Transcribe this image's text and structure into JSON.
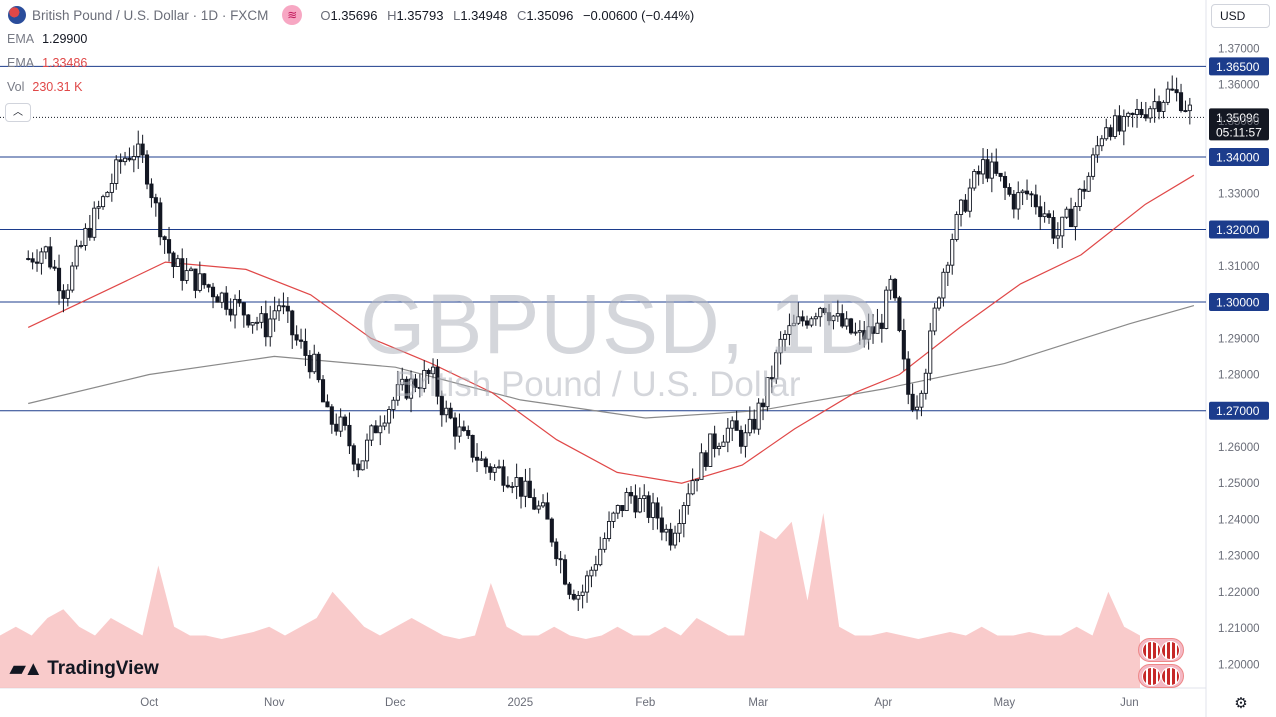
{
  "header": {
    "title": "British Pound / U.S. Dollar · 1D · FXCM",
    "open_label": "O",
    "open": "1.35696",
    "high_label": "H",
    "high": "1.35793",
    "low_label": "L",
    "low": "1.34948",
    "close_label": "C",
    "close": "1.35096",
    "change": "−0.00600 (−0.44%)"
  },
  "indicators": [
    {
      "name": "EMA",
      "value": "1.29900",
      "color": "#787b86"
    },
    {
      "name": "EMA",
      "value": "1.33486",
      "color": "#e04848"
    },
    {
      "name": "Vol",
      "value": "230.31 K",
      "color": "#e04848"
    }
  ],
  "currency_button": "USD",
  "collapse_icon": "chevron-up-icon",
  "watermark": {
    "symbol": "GBPUSD, 1D",
    "description": "British Pound / U.S. Dollar"
  },
  "brand": "TradingView",
  "colors": {
    "up": "#131722",
    "down": "#131722",
    "ema_fast": "#e04848",
    "ema_slow": "#8a8a8a",
    "hline": "#1c3c8c",
    "vol_up": "#a8d8d0",
    "vol_down": "#f7b9b9"
  },
  "chart_data": {
    "type": "candlestick",
    "title": "GBPUSD, 1D",
    "ylim": [
      1.1935,
      1.3745
    ],
    "y_ticks": [
      "1.37000",
      "1.36000",
      "1.35000",
      "1.33000",
      "1.31000",
      "1.29000",
      "1.28000",
      "1.26000",
      "1.25000",
      "1.24000",
      "1.23000",
      "1.22000",
      "1.21000",
      "1.20000"
    ],
    "x_ticks": [
      "Oct",
      "Nov",
      "Dec",
      "2025",
      "Feb",
      "Mar",
      "Apr",
      "May",
      "Jun"
    ],
    "price_lines": [
      "1.36500",
      "1.34000",
      "1.32000",
      "1.30000",
      "1.27000"
    ],
    "last_price": "1.35096",
    "countdown": "05:11:57",
    "close_path": [
      [
        "2024-09-01",
        1.312
      ],
      [
        "2024-09-05",
        1.315
      ],
      [
        "2024-09-10",
        1.303
      ],
      [
        "2024-09-15",
        1.318
      ],
      [
        "2024-09-20",
        1.329
      ],
      [
        "2024-09-24",
        1.339
      ],
      [
        "2024-09-27",
        1.342
      ],
      [
        "2024-09-30",
        1.338
      ],
      [
        "2024-10-03",
        1.324
      ],
      [
        "2024-10-07",
        1.31
      ],
      [
        "2024-10-11",
        1.307
      ],
      [
        "2024-10-16",
        1.304
      ],
      [
        "2024-10-21",
        1.3
      ],
      [
        "2024-10-25",
        1.297
      ],
      [
        "2024-10-30",
        1.293
      ],
      [
        "2024-11-02",
        1.3
      ],
      [
        "2024-11-06",
        1.29
      ],
      [
        "2024-11-11",
        1.282
      ],
      [
        "2024-11-14",
        1.268
      ],
      [
        "2024-11-18",
        1.265
      ],
      [
        "2024-11-22",
        1.255
      ],
      [
        "2024-11-27",
        1.268
      ],
      [
        "2024-12-02",
        1.275
      ],
      [
        "2024-12-06",
        1.278
      ],
      [
        "2024-12-10",
        1.28
      ],
      [
        "2024-12-13",
        1.27
      ],
      [
        "2024-12-18",
        1.262
      ],
      [
        "2024-12-23",
        1.255
      ],
      [
        "2024-12-30",
        1.252
      ],
      [
        "2025-01-03",
        1.246
      ],
      [
        "2025-01-07",
        1.241
      ],
      [
        "2025-01-10",
        1.232
      ],
      [
        "2025-01-13",
        1.222
      ],
      [
        "2025-01-16",
        1.219
      ],
      [
        "2025-01-20",
        1.23
      ],
      [
        "2025-01-24",
        1.24
      ],
      [
        "2025-01-28",
        1.247
      ],
      [
        "2025-02-01",
        1.243
      ],
      [
        "2025-02-04",
        1.241
      ],
      [
        "2025-02-07",
        1.235
      ],
      [
        "2025-02-12",
        1.25
      ],
      [
        "2025-02-17",
        1.26
      ],
      [
        "2025-02-21",
        1.265
      ],
      [
        "2025-02-26",
        1.262
      ],
      [
        "2025-03-03",
        1.275
      ],
      [
        "2025-03-07",
        1.29
      ],
      [
        "2025-03-12",
        1.295
      ],
      [
        "2025-03-17",
        1.3
      ],
      [
        "2025-03-21",
        1.294
      ],
      [
        "2025-03-26",
        1.29
      ],
      [
        "2025-03-31",
        1.293
      ],
      [
        "2025-04-03",
        1.305
      ],
      [
        "2025-04-07",
        1.275
      ],
      [
        "2025-04-09",
        1.272
      ],
      [
        "2025-04-12",
        1.285
      ],
      [
        "2025-04-15",
        1.305
      ],
      [
        "2025-04-18",
        1.318
      ],
      [
        "2025-04-22",
        1.33
      ],
      [
        "2025-04-26",
        1.338
      ],
      [
        "2025-04-30",
        1.333
      ],
      [
        "2025-05-03",
        1.328
      ],
      [
        "2025-05-07",
        1.33
      ],
      [
        "2025-05-11",
        1.325
      ],
      [
        "2025-05-14",
        1.318
      ],
      [
        "2025-05-18",
        1.325
      ],
      [
        "2025-05-22",
        1.335
      ],
      [
        "2025-05-26",
        1.35
      ],
      [
        "2025-05-30",
        1.347
      ],
      [
        "2025-06-03",
        1.352
      ],
      [
        "2025-06-07",
        1.355
      ],
      [
        "2025-06-11",
        1.358
      ],
      [
        "2025-06-14",
        1.356
      ],
      [
        "2025-06-17",
        1.351
      ]
    ],
    "ema_slow_path": [
      [
        "2024-09-01",
        1.272
      ],
      [
        "2024-10-01",
        1.28
      ],
      [
        "2024-11-01",
        1.285
      ],
      [
        "2024-12-01",
        1.282
      ],
      [
        "2025-01-01",
        1.273
      ],
      [
        "2025-02-01",
        1.268
      ],
      [
        "2025-03-01",
        1.27
      ],
      [
        "2025-04-01",
        1.276
      ],
      [
        "2025-05-01",
        1.283
      ],
      [
        "2025-06-01",
        1.294
      ],
      [
        "2025-06-17",
        1.299
      ]
    ],
    "ema_fast_path": [
      [
        "2024-09-01",
        1.293
      ],
      [
        "2024-09-20",
        1.303
      ],
      [
        "2024-10-05",
        1.311
      ],
      [
        "2024-10-25",
        1.309
      ],
      [
        "2024-11-10",
        1.302
      ],
      [
        "2024-11-25",
        1.29
      ],
      [
        "2024-12-10",
        1.283
      ],
      [
        "2024-12-25",
        1.275
      ],
      [
        "2025-01-10",
        1.262
      ],
      [
        "2025-01-25",
        1.253
      ],
      [
        "2025-02-10",
        1.25
      ],
      [
        "2025-02-25",
        1.255
      ],
      [
        "2025-03-10",
        1.265
      ],
      [
        "2025-03-25",
        1.275
      ],
      [
        "2025-04-05",
        1.28
      ],
      [
        "2025-04-20",
        1.293
      ],
      [
        "2025-05-05",
        1.305
      ],
      [
        "2025-05-20",
        1.313
      ],
      [
        "2025-06-05",
        1.327
      ],
      [
        "2025-06-17",
        1.335
      ]
    ],
    "volume_path": [
      0.3,
      0.35,
      0.3,
      0.4,
      0.45,
      0.35,
      0.3,
      0.4,
      0.35,
      0.3,
      0.7,
      0.35,
      0.3,
      0.3,
      0.28,
      0.3,
      0.32,
      0.35,
      0.3,
      0.35,
      0.4,
      0.55,
      0.45,
      0.35,
      0.3,
      0.35,
      0.4,
      0.35,
      0.3,
      0.28,
      0.3,
      0.6,
      0.35,
      0.3,
      0.3,
      0.35,
      0.3,
      0.28,
      0.3,
      0.35,
      0.3,
      0.3,
      0.35,
      0.3,
      0.4,
      0.35,
      0.3,
      0.3,
      0.9,
      0.85,
      0.95,
      0.5,
      1.0,
      0.35,
      0.3,
      0.3,
      0.32,
      0.3,
      0.28,
      0.3,
      0.32,
      0.3,
      0.35,
      0.3,
      0.3,
      0.32,
      0.3,
      0.3,
      0.35,
      0.3,
      0.55,
      0.35,
      0.3
    ]
  }
}
